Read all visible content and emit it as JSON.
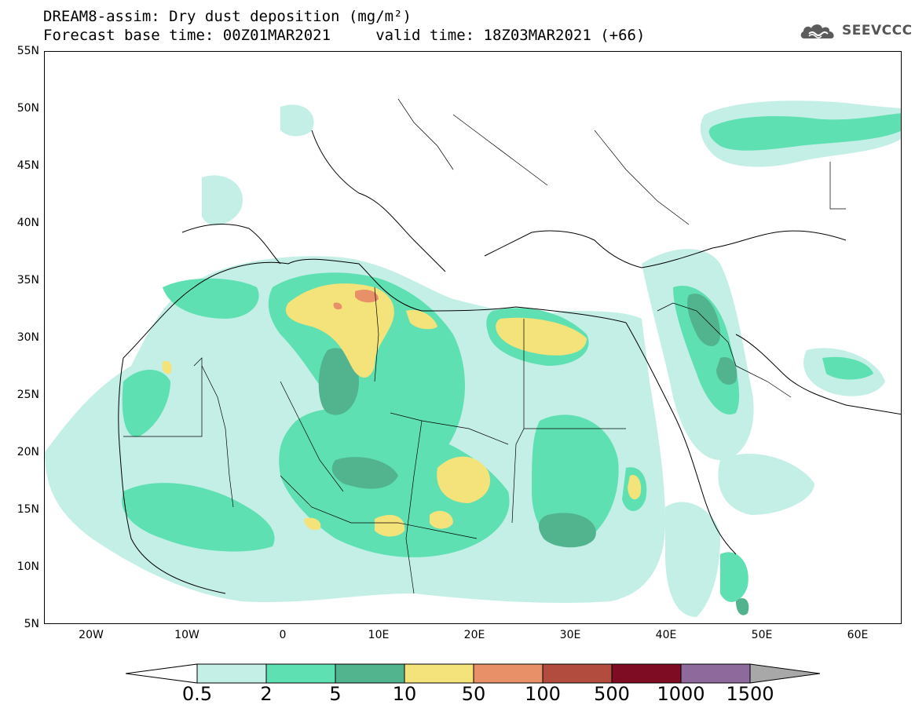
{
  "header": {
    "title_line1": "DREAM8-assim: Dry dust deposition (mg/m²)",
    "title_line2": "Forecast base time: 00Z01MAR2021     valid time: 18Z03MAR2021 (+66)"
  },
  "logo": {
    "text": "SEEVCCC",
    "icon": "cloud-icon"
  },
  "map": {
    "lat_labels": [
      "55N",
      "50N",
      "45N",
      "40N",
      "35N",
      "30N",
      "25N",
      "20N",
      "15N",
      "10N",
      "5N"
    ],
    "lon_labels": [
      "20W",
      "10W",
      "0",
      "10E",
      "20E",
      "30E",
      "40E",
      "50E",
      "60E"
    ]
  },
  "legend": {
    "labels": [
      "0.5",
      "2",
      "5",
      "10",
      "50",
      "100",
      "500",
      "1000",
      "1500"
    ],
    "colors": [
      "#c4efe6",
      "#5fe0b2",
      "#52b48e",
      "#f4e27a",
      "#e89169",
      "#b24c3e",
      "#7e0d24",
      "#8e6a9c"
    ],
    "left_arrow_color": "#ffffff",
    "right_arrow_color": "#a8a8a8"
  },
  "colors": {
    "low": "#c4efe6",
    "mid": "#5fe0b2",
    "high": "#52b48e",
    "yellow": "#f4e27a",
    "salmon": "#e89169",
    "redbrown": "#b24c3e"
  }
}
